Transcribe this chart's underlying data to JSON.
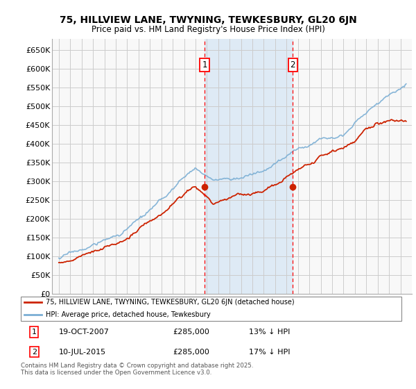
{
  "title": "75, HILLVIEW LANE, TWYNING, TEWKESBURY, GL20 6JN",
  "subtitle": "Price paid vs. HM Land Registry's House Price Index (HPI)",
  "ylim": [
    0,
    680000
  ],
  "hpi_color": "#7aaed4",
  "price_color": "#cc2200",
  "marker1_x": 2007.8,
  "marker2_x": 2015.55,
  "marker1_price": 285000,
  "marker2_price": 285000,
  "transaction1_date": "19-OCT-2007",
  "transaction2_date": "10-JUL-2015",
  "legend_house_label": "75, HILLVIEW LANE, TWYNING, TEWKESBURY, GL20 6JN (detached house)",
  "legend_hpi_label": "HPI: Average price, detached house, Tewkesbury",
  "footer": "Contains HM Land Registry data © Crown copyright and database right 2025.\nThis data is licensed under the Open Government Licence v3.0.",
  "background_color": "#ffffff",
  "plot_bg_color": "#f8f8f8",
  "grid_color": "#cccccc",
  "shaded_region_color": "#deeaf5"
}
